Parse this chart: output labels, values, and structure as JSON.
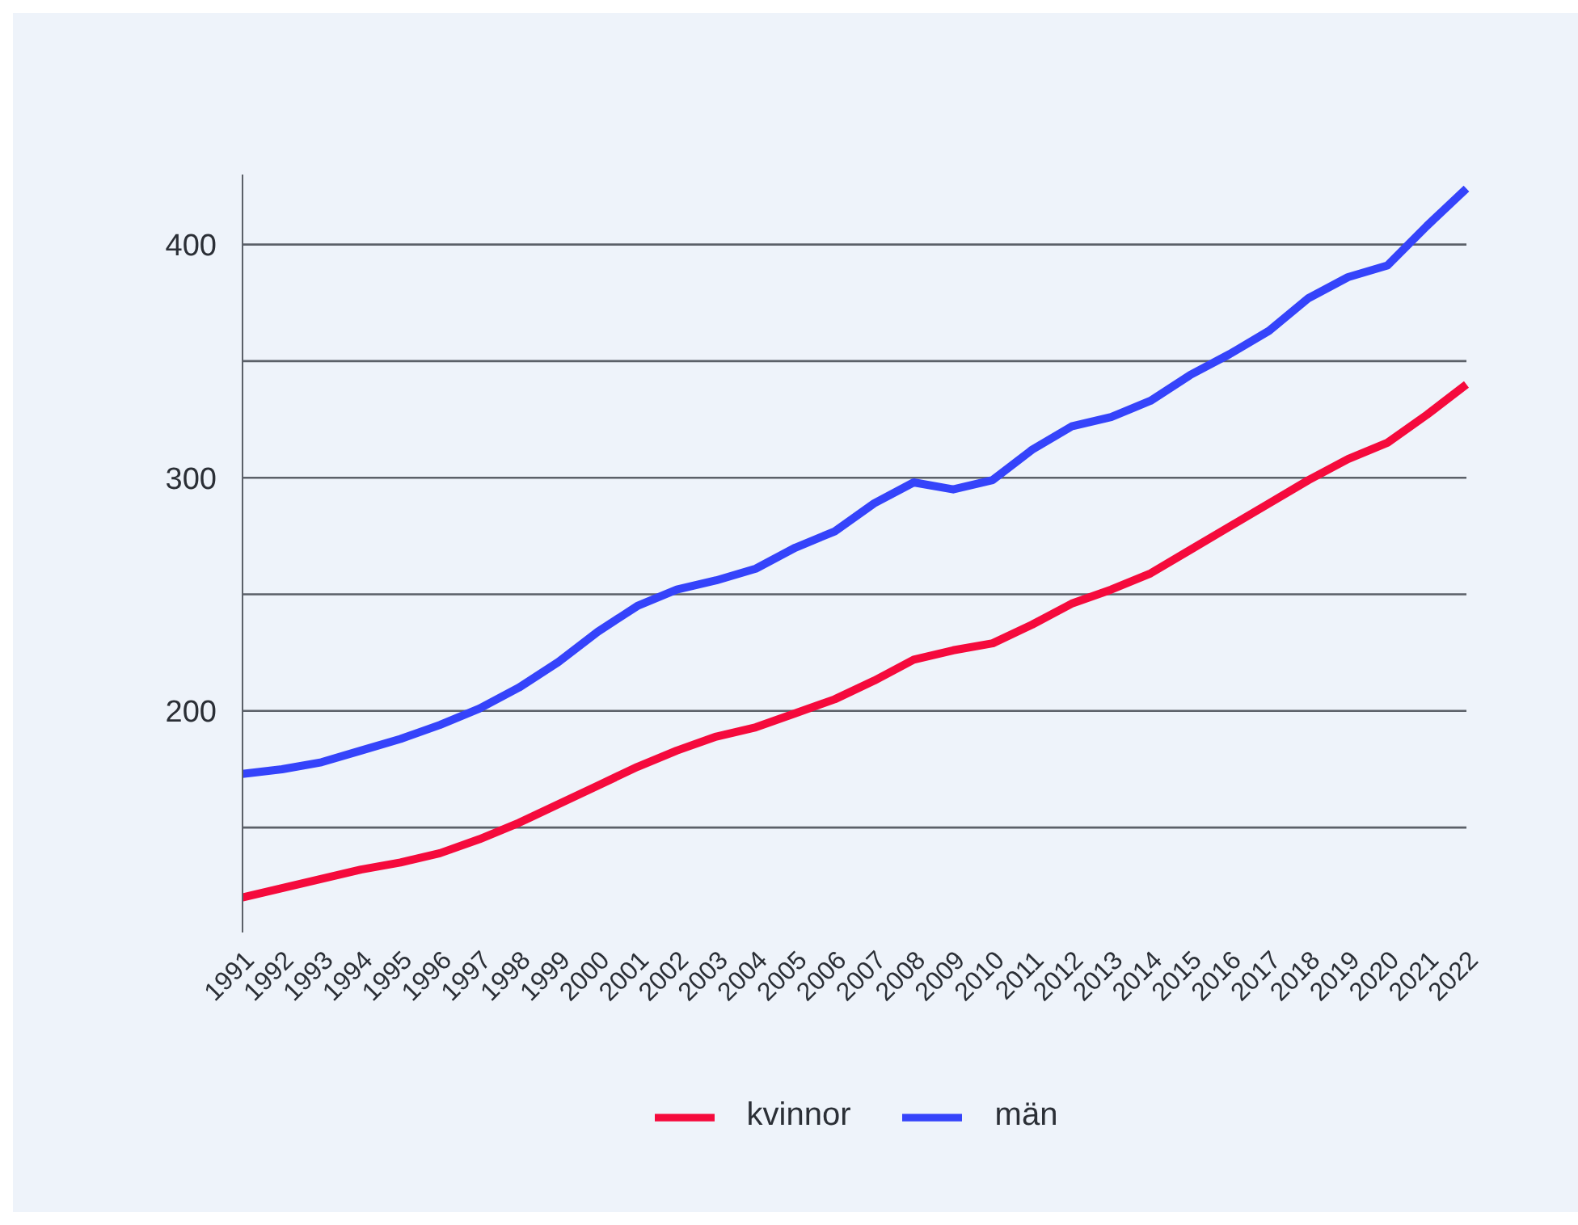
{
  "chart_data": {
    "type": "line",
    "categories": [
      "1991",
      "1992",
      "1993",
      "1994",
      "1995",
      "1996",
      "1997",
      "1998",
      "1999",
      "2000",
      "2001",
      "2002",
      "2003",
      "2004",
      "2005",
      "2006",
      "2007",
      "2008",
      "2009",
      "2010",
      "2011",
      "2012",
      "2013",
      "2014",
      "2015",
      "2016",
      "2017",
      "2018",
      "2019",
      "2020",
      "2021",
      "2022"
    ],
    "series": [
      {
        "name": "kvinnor",
        "color": "#f50a3c",
        "values": [
          120,
          124,
          128,
          132,
          135,
          139,
          145,
          152,
          160,
          168,
          176,
          183,
          189,
          193,
          199,
          205,
          213,
          222,
          226,
          229,
          237,
          246,
          252,
          259,
          269,
          279,
          289,
          299,
          308,
          315,
          327,
          340
        ]
      },
      {
        "name": "män",
        "color": "#3543fa",
        "values": [
          173,
          175,
          178,
          183,
          188,
          194,
          201,
          210,
          221,
          234,
          245,
          252,
          256,
          261,
          270,
          277,
          289,
          298,
          295,
          299,
          312,
          322,
          326,
          333,
          344,
          353,
          363,
          377,
          386,
          391,
          408,
          424
        ]
      }
    ],
    "ylim": [
      105,
      430
    ],
    "yticks": [
      {
        "value": 150,
        "label": null
      },
      200,
      {
        "value": 250,
        "label": null
      },
      300,
      {
        "value": 350,
        "label": null
      },
      400
    ],
    "grid": "y",
    "legend": "bottom",
    "line_style": "solid"
  }
}
